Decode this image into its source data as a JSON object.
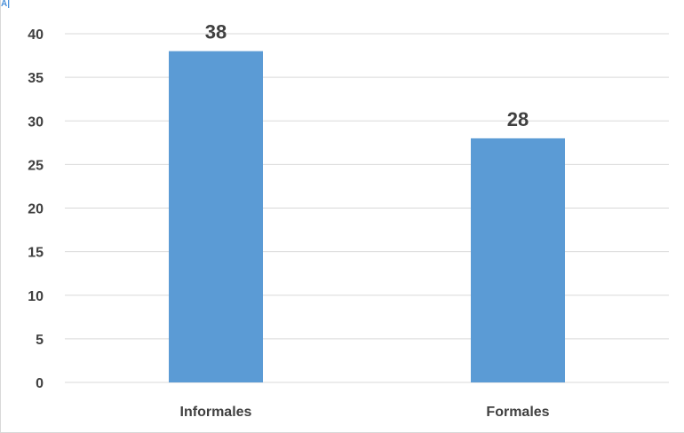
{
  "corner_text": "A|",
  "chart_data": {
    "type": "bar",
    "categories": [
      "Informales",
      "Formales"
    ],
    "values": [
      38,
      28
    ],
    "data_labels": [
      "38",
      "28"
    ],
    "yticks": [
      "0",
      "5",
      "10",
      "15",
      "20",
      "25",
      "30",
      "35",
      "40"
    ],
    "ylim": [
      0,
      40
    ],
    "grid": true,
    "legend": "none",
    "title": "",
    "xlabel": "",
    "ylabel": "",
    "colors": {
      "bar": "#5b9bd5",
      "grid": "#d9d9d9",
      "text": "#404040"
    }
  }
}
